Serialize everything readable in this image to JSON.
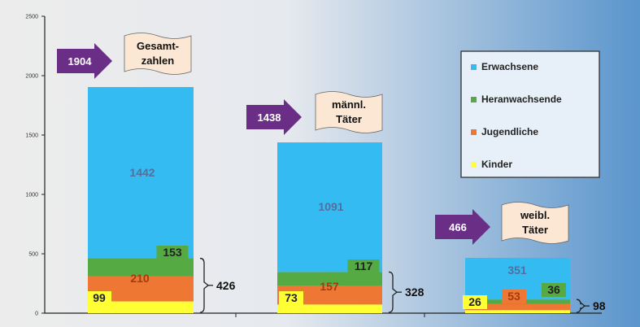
{
  "chart_data": {
    "type": "bar",
    "stacked": true,
    "grid": false,
    "legend_position": "top-right",
    "ylim": [
      0,
      2500
    ],
    "yticks": [
      0,
      500,
      1000,
      1500,
      2000,
      2500
    ],
    "groups": [
      {
        "total": "1904",
        "label": "Gesamt-\nzahlen",
        "lines": [
          "Gesamt-",
          "zahlen"
        ],
        "bracket": "426"
      },
      {
        "total": "1438",
        "label": "männl.\nTäter",
        "lines": [
          "männl.",
          "Täter"
        ],
        "bracket": "328"
      },
      {
        "total": "466",
        "label": "weibl.\nTäter",
        "lines": [
          "weibl.",
          "Täter"
        ],
        "bracket": "98"
      }
    ],
    "series": [
      {
        "name": "Kinder",
        "color": "#ffff33",
        "values": [
          99,
          73,
          26
        ]
      },
      {
        "name": "Jugendliche",
        "color": "#ee7733",
        "values": [
          210,
          157,
          53
        ]
      },
      {
        "name": "Heranwachsende",
        "color": "#55aa44",
        "values": [
          153,
          117,
          36
        ]
      },
      {
        "name": "Erwachsene",
        "color": "#33bbf2",
        "values": [
          1442,
          1091,
          351
        ]
      }
    ],
    "colors": {
      "arrow": "#6b2e86",
      "background_left": "#ececec",
      "background_right": "#5a95cc"
    }
  }
}
